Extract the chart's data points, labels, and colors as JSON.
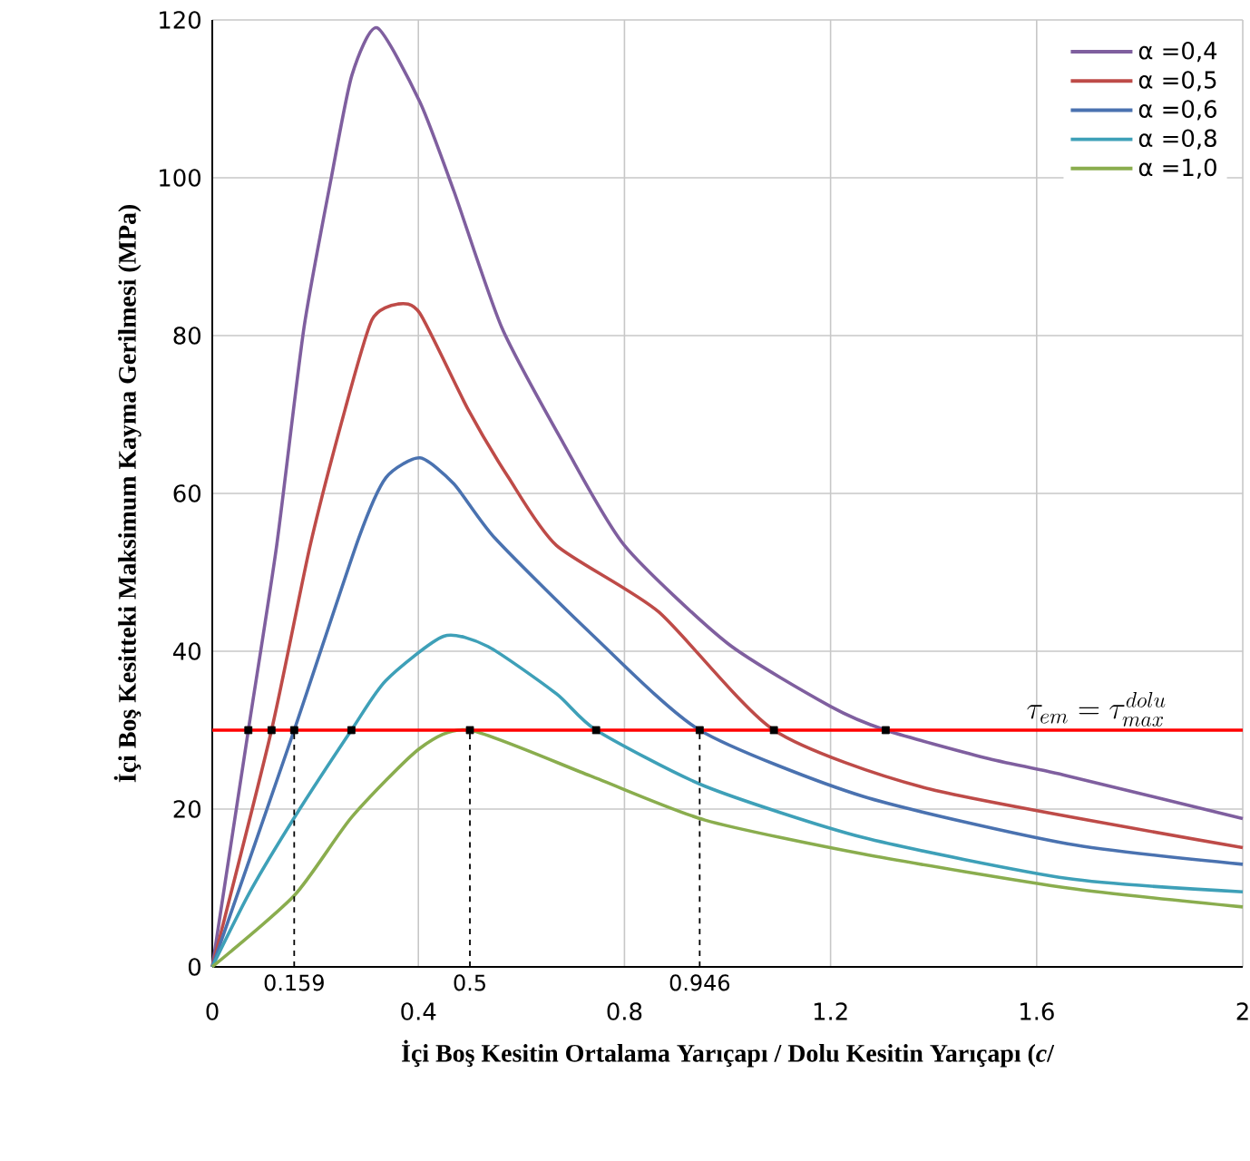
{
  "chart_data": {
    "type": "line",
    "xlabel": "İçi Boş Kesitin Ortalama Yarıçapı / Dolu Kesitin Yarıçapı (*c*/",
    "ylabel": "İçi Boş Kesitteki Maksimum Kayma Gerilmesi (MPa)",
    "xlim": [
      0,
      2
    ],
    "ylim": [
      0,
      120
    ],
    "xticks": [
      0,
      0.4,
      0.8,
      1.2,
      1.6,
      2
    ],
    "yticks": [
      0,
      20,
      40,
      60,
      80,
      100,
      120
    ],
    "grid": true,
    "legend": "top right",
    "marker": "none",
    "line_style": "solid",
    "series": [
      {
        "name": "α =0,4",
        "color": "#7f5f9f",
        "x": [
          0,
          0.07,
          0.125,
          0.178,
          0.231,
          0.271,
          0.32,
          0.403,
          0.469,
          0.562,
          0.681,
          0.8,
          1.0,
          1.2,
          1.307,
          1.5,
          1.66,
          2.0
        ],
        "values": [
          0,
          30,
          53.4,
          81,
          100,
          113,
          119,
          109.6,
          98.3,
          81,
          66.4,
          53.4,
          41,
          33,
          30,
          26.5,
          24.2,
          18.8
        ]
      },
      {
        "name": "α =0,5",
        "color": "#be4b48",
        "x": [
          0,
          0.115,
          0.19,
          0.258,
          0.31,
          0.36,
          0.403,
          0.496,
          0.575,
          0.668,
          0.866,
          1.09,
          1.395,
          2.0
        ],
        "values": [
          0,
          30,
          53.4,
          70.7,
          82,
          84,
          82.8,
          70.7,
          62,
          53.4,
          45,
          30,
          22.5,
          15.1
        ]
      },
      {
        "name": "α =0,6",
        "color": "#4a72b0",
        "x": [
          0,
          0.159,
          0.284,
          0.337,
          0.403,
          0.469,
          0.549,
          0.734,
          0.946,
          1.263,
          1.66,
          2.0
        ],
        "values": [
          0,
          30,
          54.3,
          62,
          64.5,
          61.2,
          54.3,
          42.3,
          30,
          21.6,
          15.6,
          13
        ]
      },
      {
        "name": "α =0,8",
        "color": "#3ea0b8",
        "x": [
          0,
          0.073,
          0.16,
          0.27,
          0.337,
          0.449,
          0.535,
          0.668,
          0.745,
          0.956,
          1.263,
          1.66,
          2.0
        ],
        "values": [
          0,
          9.5,
          19,
          30,
          36.3,
          41.9,
          40.6,
          34.6,
          30,
          22.9,
          16.4,
          11.2,
          9.5
        ]
      },
      {
        "name": "α =1,0",
        "color": "#8aad4e",
        "x": [
          0,
          0.16,
          0.271,
          0.403,
          0.5,
          0.734,
          0.956,
          1.263,
          1.66,
          2.0
        ],
        "values": [
          0,
          9.1,
          19,
          27.7,
          30,
          24.2,
          18.6,
          14.3,
          10,
          7.6
        ]
      },
      {
        "type": "scatter",
        "color": "#000000",
        "marker": "square",
        "x": [
          0.07,
          0.115,
          0.159,
          0.27,
          0.5,
          0.745,
          0.946,
          1.09,
          1.307
        ],
        "values": [
          30,
          30,
          30,
          30,
          30,
          30,
          30,
          30,
          30
        ]
      }
    ],
    "ref_lines": [
      {
        "axis": "y",
        "value": 30,
        "label": "\\tau_{em} = \\tau_{max}^{dolu}",
        "color": "#ff0000",
        "line_style": "solid"
      },
      {
        "axis": "x",
        "value": 0.159,
        "label": "0.159",
        "color": "#000000",
        "line_style": "dashed"
      },
      {
        "axis": "x",
        "value": 0.5,
        "label": "0.5",
        "color": "#000000",
        "line_style": "dashed"
      },
      {
        "axis": "x",
        "value": 0.946,
        "label": "0.946",
        "color": "#000000",
        "line_style": "dashed"
      }
    ]
  }
}
